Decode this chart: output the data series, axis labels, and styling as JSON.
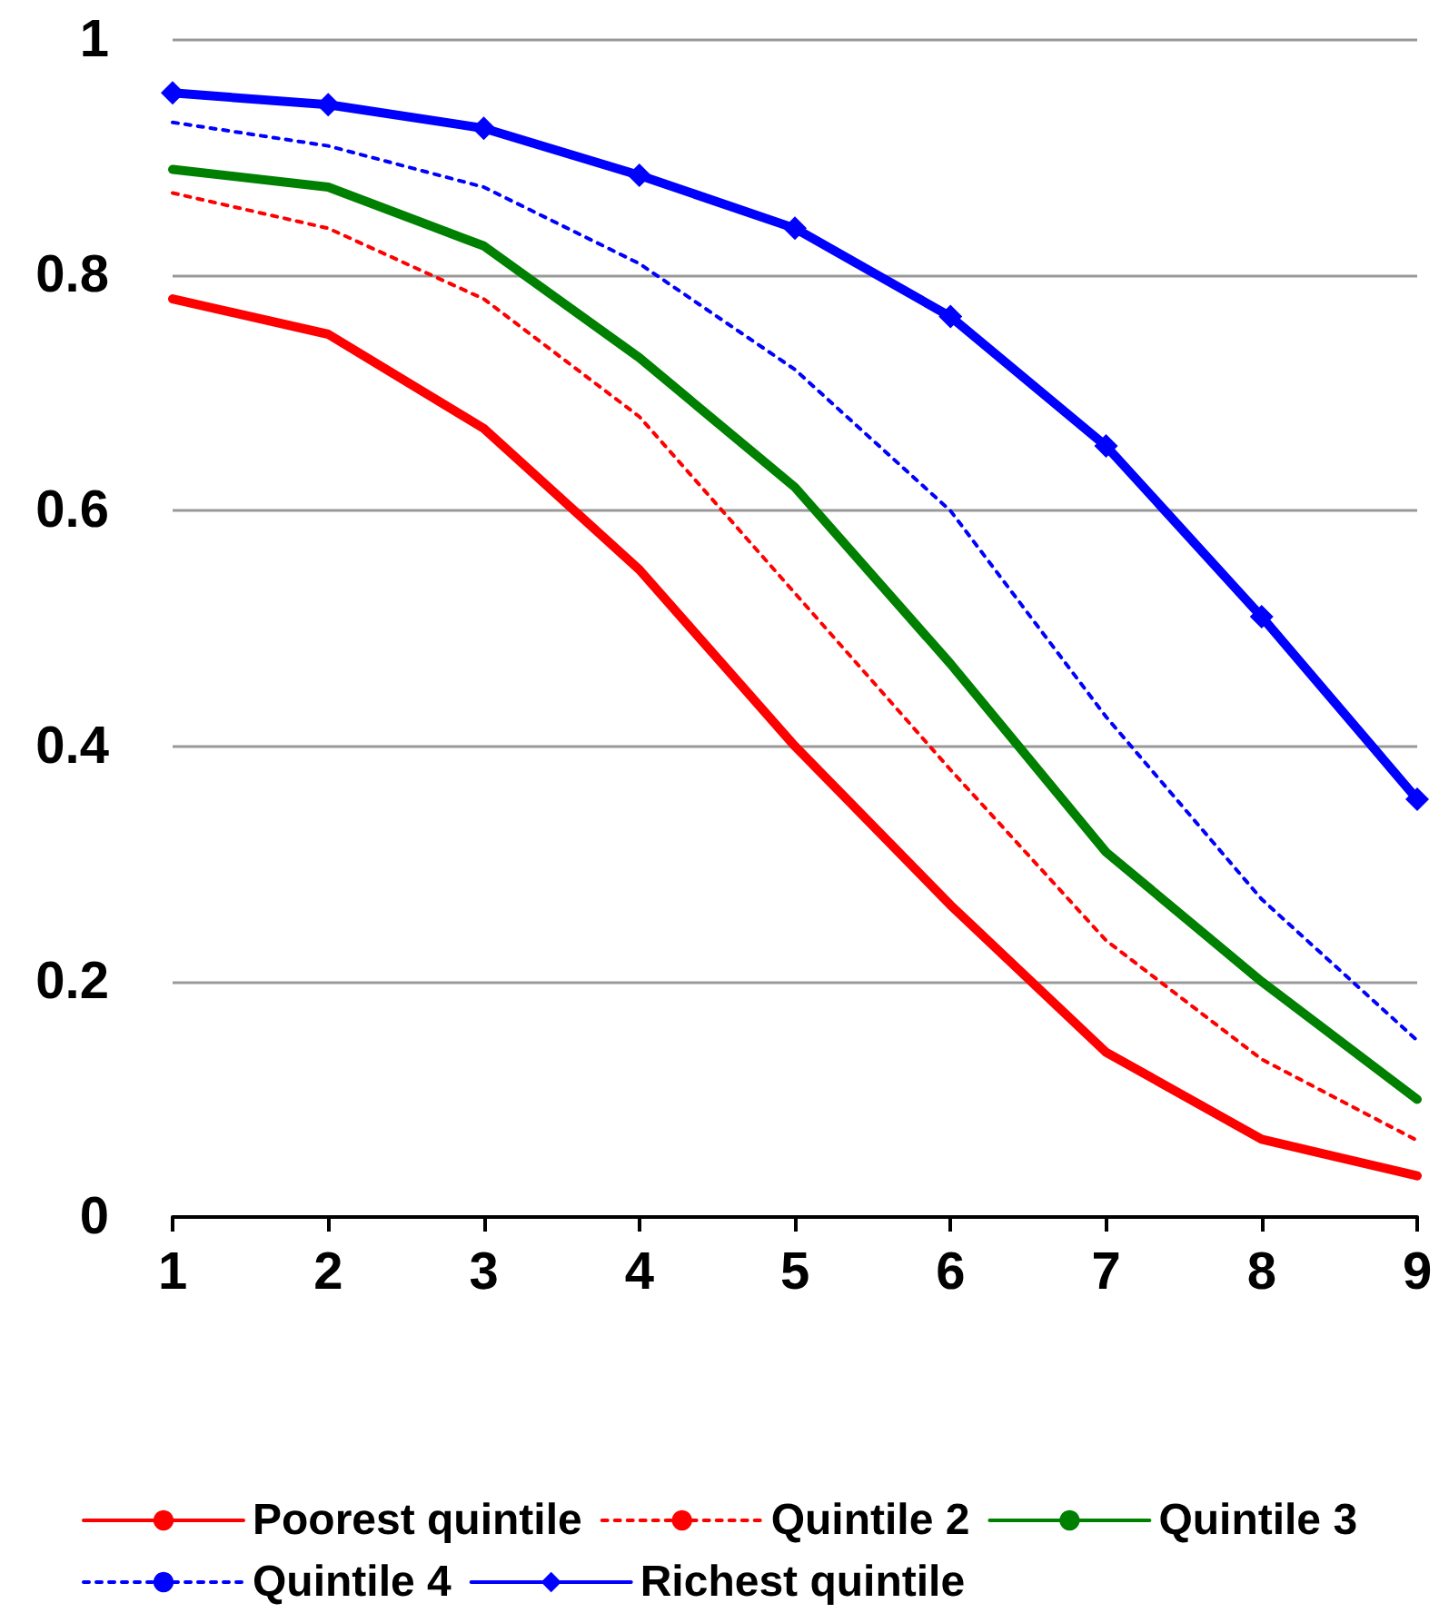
{
  "chart_data": {
    "type": "line",
    "x": [
      1,
      2,
      3,
      4,
      5,
      6,
      7,
      8,
      9
    ],
    "xlim": [
      1,
      9
    ],
    "xticks": [
      1,
      2,
      3,
      4,
      5,
      6,
      7,
      8,
      9
    ],
    "ylim": [
      0,
      1
    ],
    "yticks": [
      0,
      0.2,
      0.4,
      0.6,
      0.8,
      1
    ],
    "grid": "y",
    "legend": "bottom",
    "marker": "none",
    "line_style": "solid",
    "series": [
      {
        "name": "Poorest quintile",
        "color": "#ff0000",
        "values": [
          0.78,
          0.75,
          0.67,
          0.55,
          0.4,
          0.265,
          0.14,
          0.066,
          0.035
        ]
      },
      {
        "name": "Quintile 2",
        "color": "#ff0000",
        "line_style": "dotted",
        "values": [
          0.87,
          0.84,
          0.78,
          0.68,
          0.53,
          0.38,
          0.235,
          0.134,
          0.065
        ]
      },
      {
        "name": "Quintile 3",
        "color": "#008000",
        "values": [
          0.89,
          0.875,
          0.825,
          0.73,
          0.62,
          0.47,
          0.31,
          0.2,
          0.1
        ]
      },
      {
        "name": "Quintile 4",
        "color": "#0000ff",
        "line_style": "dotted",
        "values": [
          0.93,
          0.91,
          0.875,
          0.81,
          0.72,
          0.6,
          0.425,
          0.27,
          0.15
        ]
      },
      {
        "name": "Richest quintile",
        "color": "#0000ff",
        "marker": "diamond",
        "values": [
          0.955,
          0.945,
          0.925,
          0.885,
          0.84,
          0.765,
          0.655,
          0.51,
          0.355
        ]
      }
    ]
  }
}
